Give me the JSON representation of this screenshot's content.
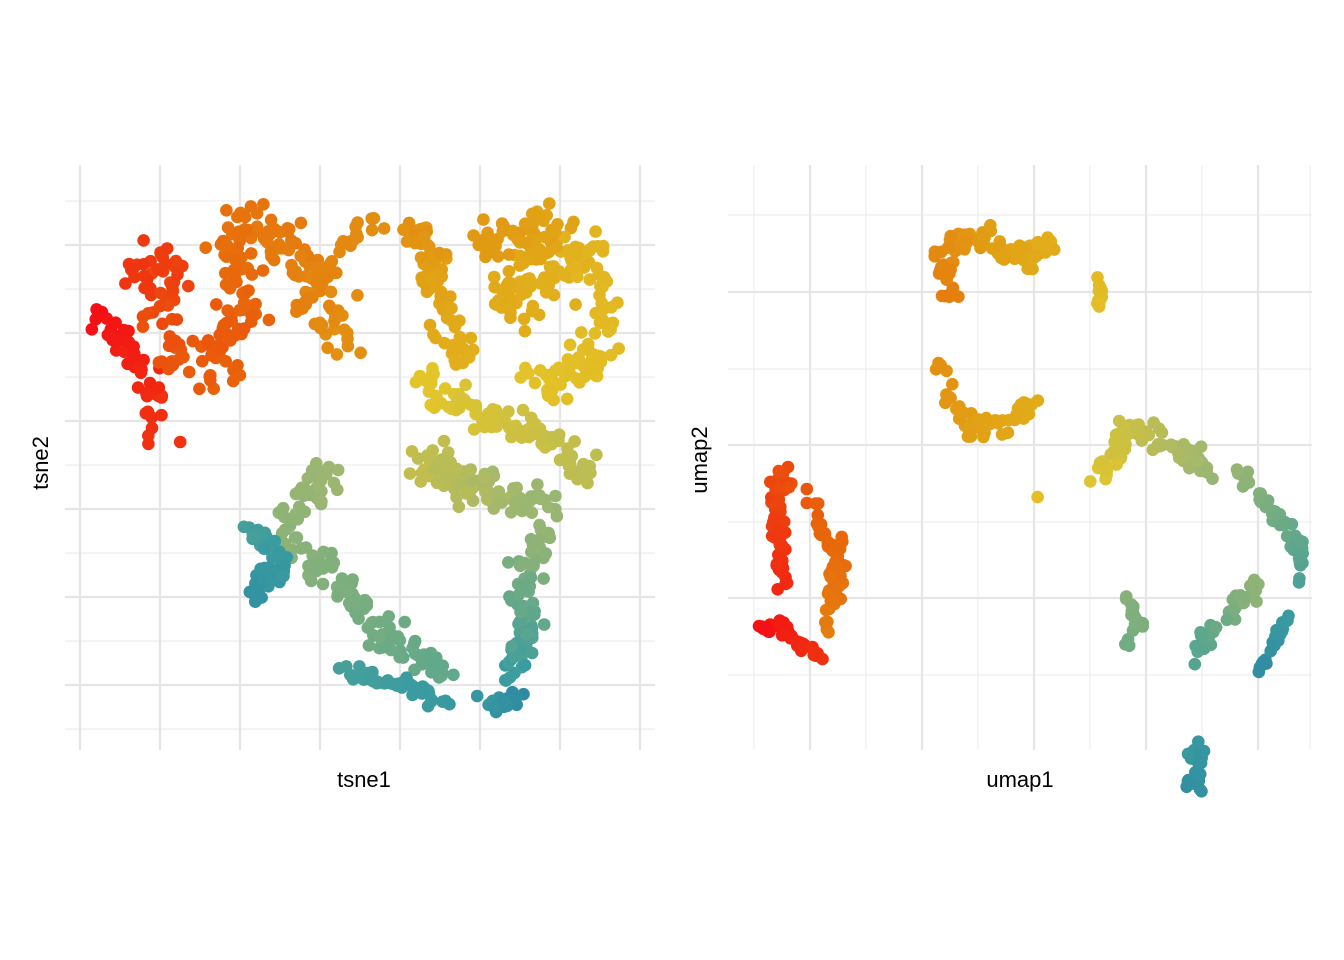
{
  "chart_data": [
    {
      "type": "scatter",
      "panel": "left",
      "xlabel": "tsne1",
      "ylabel": "tsne2",
      "tick_labels": false,
      "grid": true,
      "color_gradient": [
        "#f50f15",
        "#e8650a",
        "#e1a315",
        "#e3c52a",
        "#a3b86e",
        "#6aaa86",
        "#3a9ca0",
        "#2e8aa2"
      ],
      "xlim": [
        0,
        14
      ],
      "ylim": [
        0,
        13
      ],
      "clusters": [
        {
          "name": "",
          "path": [
            [
              0.5,
              9.9
            ],
            [
              0.8,
              9.3
            ],
            [
              1.1,
              9.1
            ],
            [
              1.4,
              8.6
            ],
            [
              1.7,
              8.2
            ],
            [
              1.8,
              7.7
            ],
            [
              1.9,
              7.1
            ]
          ],
          "spread": 0.3,
          "n": 50,
          "t": [
            0.0,
            0.06
          ]
        },
        {
          "name": "",
          "path": [
            [
              1.2,
              10.5
            ],
            [
              1.8,
              10.8
            ],
            [
              2.4,
              10.9
            ],
            [
              2.2,
              10.2
            ],
            [
              2.0,
              9.5
            ],
            [
              2.4,
              8.8
            ],
            [
              3.0,
              8.6
            ],
            [
              3.8,
              8.5
            ]
          ],
          "spread": 0.45,
          "n": 75,
          "t": [
            0.06,
            0.14
          ]
        },
        {
          "name": "",
          "path": [
            [
              3.4,
              9.1
            ],
            [
              3.8,
              9.5
            ],
            [
              4.2,
              10.1
            ],
            [
              4.0,
              10.7
            ],
            [
              3.8,
              11.3
            ],
            [
              4.3,
              11.9
            ],
            [
              4.8,
              11.6
            ],
            [
              5.4,
              11.0
            ],
            [
              5.8,
              10.4
            ],
            [
              6.3,
              9.7
            ],
            [
              6.6,
              9.2
            ]
          ],
          "spread": 0.45,
          "n": 150,
          "t": [
            0.12,
            0.24
          ]
        },
        {
          "name": "",
          "path": [
            [
              5.4,
              9.8
            ],
            [
              6.0,
              10.6
            ],
            [
              6.6,
              11.3
            ],
            [
              7.1,
              11.7
            ],
            [
              7.7,
              11.8
            ]
          ],
          "spread": 0.2,
          "n": 35,
          "t": [
            0.2,
            0.24
          ]
        },
        {
          "name": "",
          "path": [
            [
              8.3,
              11.8
            ],
            [
              8.7,
              11.3
            ],
            [
              8.9,
              10.5
            ],
            [
              9.1,
              9.8
            ],
            [
              9.4,
              9.1
            ],
            [
              9.6,
              8.6
            ]
          ],
          "spread": 0.3,
          "n": 85,
          "t": [
            0.24,
            0.34
          ]
        },
        {
          "name": "",
          "path": [
            [
              10.0,
              11.4
            ],
            [
              10.9,
              11.6
            ],
            [
              11.8,
              11.8
            ],
            [
              11.0,
              10.8
            ],
            [
              10.5,
              10.2
            ],
            [
              11.4,
              10.2
            ],
            [
              12.6,
              11.4
            ],
            [
              12.9,
              10.2
            ],
            [
              13.0,
              9.3
            ],
            [
              12.6,
              8.6
            ],
            [
              11.9,
              8.2
            ],
            [
              11.2,
              8.4
            ]
          ],
          "spread": 0.45,
          "n": 220,
          "t": [
            0.26,
            0.42
          ]
        },
        {
          "name": "",
          "path": [
            [
              8.4,
              8.6
            ],
            [
              8.8,
              8.1
            ],
            [
              9.5,
              7.8
            ],
            [
              10.2,
              7.4
            ],
            [
              11.0,
              7.3
            ],
            [
              11.8,
              6.9
            ],
            [
              12.9,
              6.1
            ]
          ],
          "spread": 0.35,
          "n": 100,
          "t": [
            0.42,
            0.52
          ]
        },
        {
          "name": "",
          "path": [
            [
              8.5,
              6.6
            ],
            [
              9.2,
              6.2
            ],
            [
              10.0,
              5.8
            ],
            [
              10.8,
              5.6
            ],
            [
              11.6,
              5.5
            ]
          ],
          "spread": 0.45,
          "n": 110,
          "t": [
            0.5,
            0.6
          ]
        },
        {
          "name": "",
          "path": [
            [
              6.5,
              6.5
            ],
            [
              6.0,
              6.0
            ],
            [
              5.5,
              5.4
            ],
            [
              5.2,
              4.8
            ],
            [
              5.9,
              4.2
            ],
            [
              6.8,
              3.4
            ],
            [
              7.6,
              2.6
            ],
            [
              8.6,
              2.0
            ],
            [
              9.1,
              1.7
            ]
          ],
          "spread": 0.35,
          "n": 140,
          "t": [
            0.58,
            0.74
          ]
        },
        {
          "name": "",
          "path": [
            [
              11.6,
              4.9
            ],
            [
              11.3,
              4.2
            ],
            [
              11.0,
              3.6
            ],
            [
              11.2,
              3.0
            ],
            [
              11.0,
              2.3
            ],
            [
              10.7,
              1.6
            ]
          ],
          "spread": 0.3,
          "n": 95,
          "t": [
            0.6,
            0.86
          ]
        },
        {
          "name": "",
          "path": [
            [
              4.2,
              4.9
            ],
            [
              4.8,
              4.6
            ],
            [
              5.0,
              4.1
            ],
            [
              4.6,
              3.7
            ],
            [
              4.3,
              3.3
            ]
          ],
          "spread": 0.25,
          "n": 55,
          "t": [
            0.82,
            0.94
          ]
        },
        {
          "name": "",
          "path": [
            [
              6.5,
              1.8
            ],
            [
              7.3,
              1.6
            ],
            [
              8.1,
              1.5
            ],
            [
              8.8,
              1.2
            ],
            [
              9.4,
              1.1
            ]
          ],
          "spread": 0.15,
          "n": 55,
          "t": [
            0.82,
            0.88
          ]
        },
        {
          "name": "",
          "path": [
            [
              10.2,
              1.2
            ],
            [
              10.6,
              1.0
            ],
            [
              11.0,
              1.3
            ]
          ],
          "spread": 0.2,
          "n": 25,
          "t": [
            0.9,
            1.0
          ]
        }
      ]
    },
    {
      "type": "scatter",
      "panel": "right",
      "xlabel": "umap1",
      "ylabel": "umap2",
      "tick_labels": false,
      "grid": true,
      "color_gradient": [
        "#f50f15",
        "#e8650a",
        "#e1a315",
        "#e3c52a",
        "#a3b86e",
        "#6aaa86",
        "#3a9ca0",
        "#2e8aa2"
      ],
      "xlim": [
        0,
        10
      ],
      "ylim": [
        0,
        7
      ],
      "clusters": [
        {
          "name": "",
          "path": [
            [
              0.1,
              1.2
            ],
            [
              0.5,
              1.3
            ],
            [
              0.9,
              1.0
            ],
            [
              1.3,
              0.8
            ]
          ],
          "spread": 0.08,
          "n": 40,
          "t": [
            0.0,
            0.06
          ]
        },
        {
          "name": "",
          "path": [
            [
              0.5,
              1.8
            ],
            [
              0.5,
              2.3
            ],
            [
              0.4,
              2.8
            ],
            [
              0.5,
              3.3
            ],
            [
              0.9,
              3.0
            ],
            [
              1.3,
              2.6
            ],
            [
              1.6,
              2.2
            ],
            [
              1.4,
              1.6
            ],
            [
              1.3,
              1.2
            ]
          ],
          "spread": 0.14,
          "n": 110,
          "t": [
            0.04,
            0.2
          ]
        },
        {
          "name": "",
          "path": [
            [
              3.5,
              5.7
            ],
            [
              3.4,
              6.2
            ],
            [
              3.7,
              6.5
            ],
            [
              4.3,
              6.4
            ],
            [
              4.9,
              6.2
            ],
            [
              5.5,
              6.6
            ]
          ],
          "spread": 0.16,
          "n": 90,
          "t": [
            0.2,
            0.34
          ]
        },
        {
          "name": "",
          "path": [
            [
              3.4,
              4.8
            ],
            [
              3.5,
              4.3
            ],
            [
              3.9,
              3.9
            ],
            [
              4.6,
              4.0
            ],
            [
              5.0,
              4.3
            ]
          ],
          "spread": 0.14,
          "n": 55,
          "t": [
            0.24,
            0.32
          ]
        },
        {
          "name": "",
          "path": [
            [
              6.2,
              6.0
            ],
            [
              6.2,
              5.6
            ]
          ],
          "spread": 0.05,
          "n": 10,
          "t": [
            0.38,
            0.4
          ]
        },
        {
          "name": "",
          "path": [
            [
              6.2,
              3.3
            ],
            [
              6.5,
              3.6
            ],
            [
              6.7,
              3.9
            ],
            [
              7.2,
              3.8
            ],
            [
              7.6,
              3.6
            ],
            [
              8.0,
              3.5
            ],
            [
              8.3,
              3.3
            ]
          ],
          "spread": 0.15,
          "n": 75,
          "t": [
            0.44,
            0.6
          ]
        },
        {
          "name": "",
          "path": [
            [
              8.7,
              3.4
            ],
            [
              9.0,
              3.1
            ],
            [
              9.4,
              2.7
            ],
            [
              9.8,
              2.3
            ],
            [
              9.8,
              1.9
            ]
          ],
          "spread": 0.1,
          "n": 50,
          "t": [
            0.6,
            0.8
          ]
        },
        {
          "name": "",
          "path": [
            [
              9.0,
              1.8
            ],
            [
              8.6,
              1.5
            ],
            [
              8.2,
              1.2
            ],
            [
              7.9,
              0.8
            ]
          ],
          "spread": 0.1,
          "n": 40,
          "t": [
            0.62,
            0.78
          ]
        },
        {
          "name": "",
          "path": [
            [
              9.6,
              1.4
            ],
            [
              9.3,
              1.0
            ],
            [
              9.1,
              0.7
            ]
          ],
          "spread": 0.06,
          "n": 25,
          "t": [
            0.86,
            0.98
          ]
        },
        {
          "name": "",
          "path": [
            [
              6.7,
              1.6
            ],
            [
              6.9,
              1.3
            ],
            [
              6.7,
              1.0
            ]
          ],
          "spread": 0.08,
          "n": 20,
          "t": [
            0.64,
            0.7
          ]
        },
        {
          "name": "",
          "path": [
            [
              7.8,
              -0.5
            ],
            [
              8.0,
              -0.3
            ],
            [
              8.0,
              -0.9
            ],
            [
              7.8,
              -0.8
            ]
          ],
          "spread": 0.08,
          "n": 25,
          "t": [
            0.88,
            0.96
          ]
        },
        {
          "name": "",
          "path": [
            [
              5.1,
              3.0
            ]
          ],
          "spread": 0.0,
          "n": 1,
          "t": [
            0.4,
            0.4
          ]
        }
      ]
    }
  ]
}
